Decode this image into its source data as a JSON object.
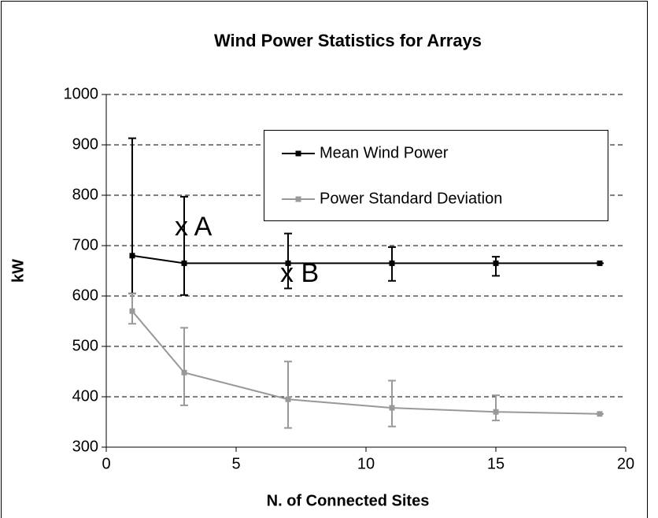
{
  "chart_data": {
    "type": "line",
    "title": "Wind Power Statistics for Arrays",
    "xlabel": "N. of Connected Sites",
    "ylabel": "kW",
    "x": [
      1,
      3,
      7,
      11,
      15,
      19
    ],
    "series": [
      {
        "name": "Mean Wind Power",
        "color": "#000000",
        "values": [
          680,
          665,
          665,
          665,
          665,
          665
        ],
        "errors_upper": [
          233,
          132,
          59,
          32,
          13,
          0
        ],
        "errors_lower": [
          75,
          63,
          50,
          35,
          25,
          0
        ]
      },
      {
        "name": "Power Standard Deviation",
        "color": "#999999",
        "values": [
          570,
          448,
          395,
          378,
          370,
          366
        ],
        "errors_upper": [
          35,
          89,
          75,
          54,
          33,
          0
        ],
        "errors_lower": [
          25,
          65,
          57,
          37,
          17,
          0
        ]
      }
    ],
    "annotations": [
      "x A",
      "x B"
    ],
    "xlim": [
      0,
      20
    ],
    "xticks": [
      0,
      5,
      10,
      15,
      20
    ],
    "ylim": [
      300,
      1000
    ],
    "yticks": [
      300,
      400,
      500,
      600,
      700,
      800,
      900,
      1000
    ],
    "grid": true,
    "legend": "upper right"
  }
}
